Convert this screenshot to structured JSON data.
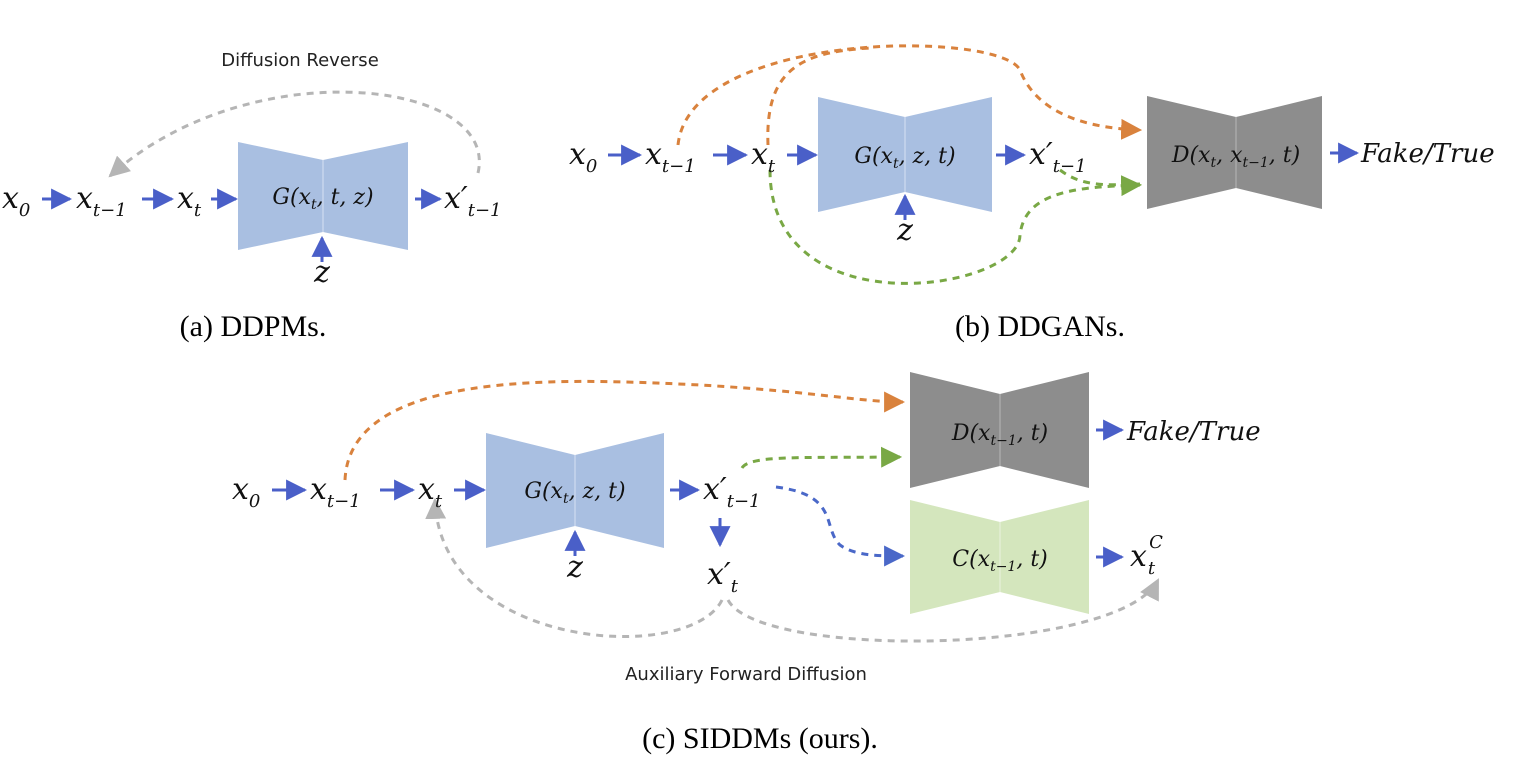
{
  "colors": {
    "arrow_blue": "#4a5fc8",
    "orange": "#d9823d",
    "green": "#79a845",
    "gray_dash": "#b5b5b5",
    "blue_dash": "#4a68c8",
    "gen_fill": "#a9bfe1",
    "disc_fill": "#8d8d8d",
    "cls_fill": "#d4e6bd"
  },
  "panel_a": {
    "caption": "(a) DDPMs.",
    "top_label": "Diffusion Reverse",
    "x0": {
      "base": "x",
      "sub": "0"
    },
    "xtm1": {
      "base": "x",
      "sub": "t−1"
    },
    "xt": {
      "base": "x",
      "sub": "t"
    },
    "xprime": {
      "base": "x′",
      "sub": "t−1"
    },
    "z": "z",
    "generator": {
      "head": "G(x",
      "sub": "t",
      "tail": ", t, z)"
    }
  },
  "panel_b": {
    "caption": "(b) DDGANs.",
    "x0": {
      "base": "x",
      "sub": "0"
    },
    "xtm1": {
      "base": "x",
      "sub": "t−1"
    },
    "xt": {
      "base": "x",
      "sub": "t"
    },
    "xprime": {
      "base": "x′",
      "sub": "t−1"
    },
    "z": "z",
    "generator": {
      "head": "G(x",
      "sub": "t",
      "tail": ", z, t)"
    },
    "discriminator": {
      "head": "D(x",
      "sub1": "t",
      "mid": ", x",
      "sub2": "t−1",
      "tail": ", t)"
    },
    "output": "Fake/True"
  },
  "panel_c": {
    "caption": "(c) SIDDMs (ours).",
    "bottom_label": "Auxiliary Forward Diffusion",
    "x0": {
      "base": "x",
      "sub": "0"
    },
    "xtm1": {
      "base": "x",
      "sub": "t−1"
    },
    "xt": {
      "base": "x",
      "sub": "t"
    },
    "xprime": {
      "base": "x′",
      "sub": "t−1"
    },
    "xtprime": {
      "base": "x′",
      "sub": "t"
    },
    "z": "z",
    "generator": {
      "head": "G(x",
      "sub": "t",
      "tail": ", z, t)"
    },
    "discriminator": {
      "head": "D(x",
      "sub": "t−1",
      "tail": ", t)"
    },
    "classifier": {
      "head": "C(x",
      "sub": "t−1",
      "tail": ", t)"
    },
    "output": "Fake/True",
    "xtc": {
      "base": "x",
      "sub": "t",
      "sup": "C"
    }
  }
}
